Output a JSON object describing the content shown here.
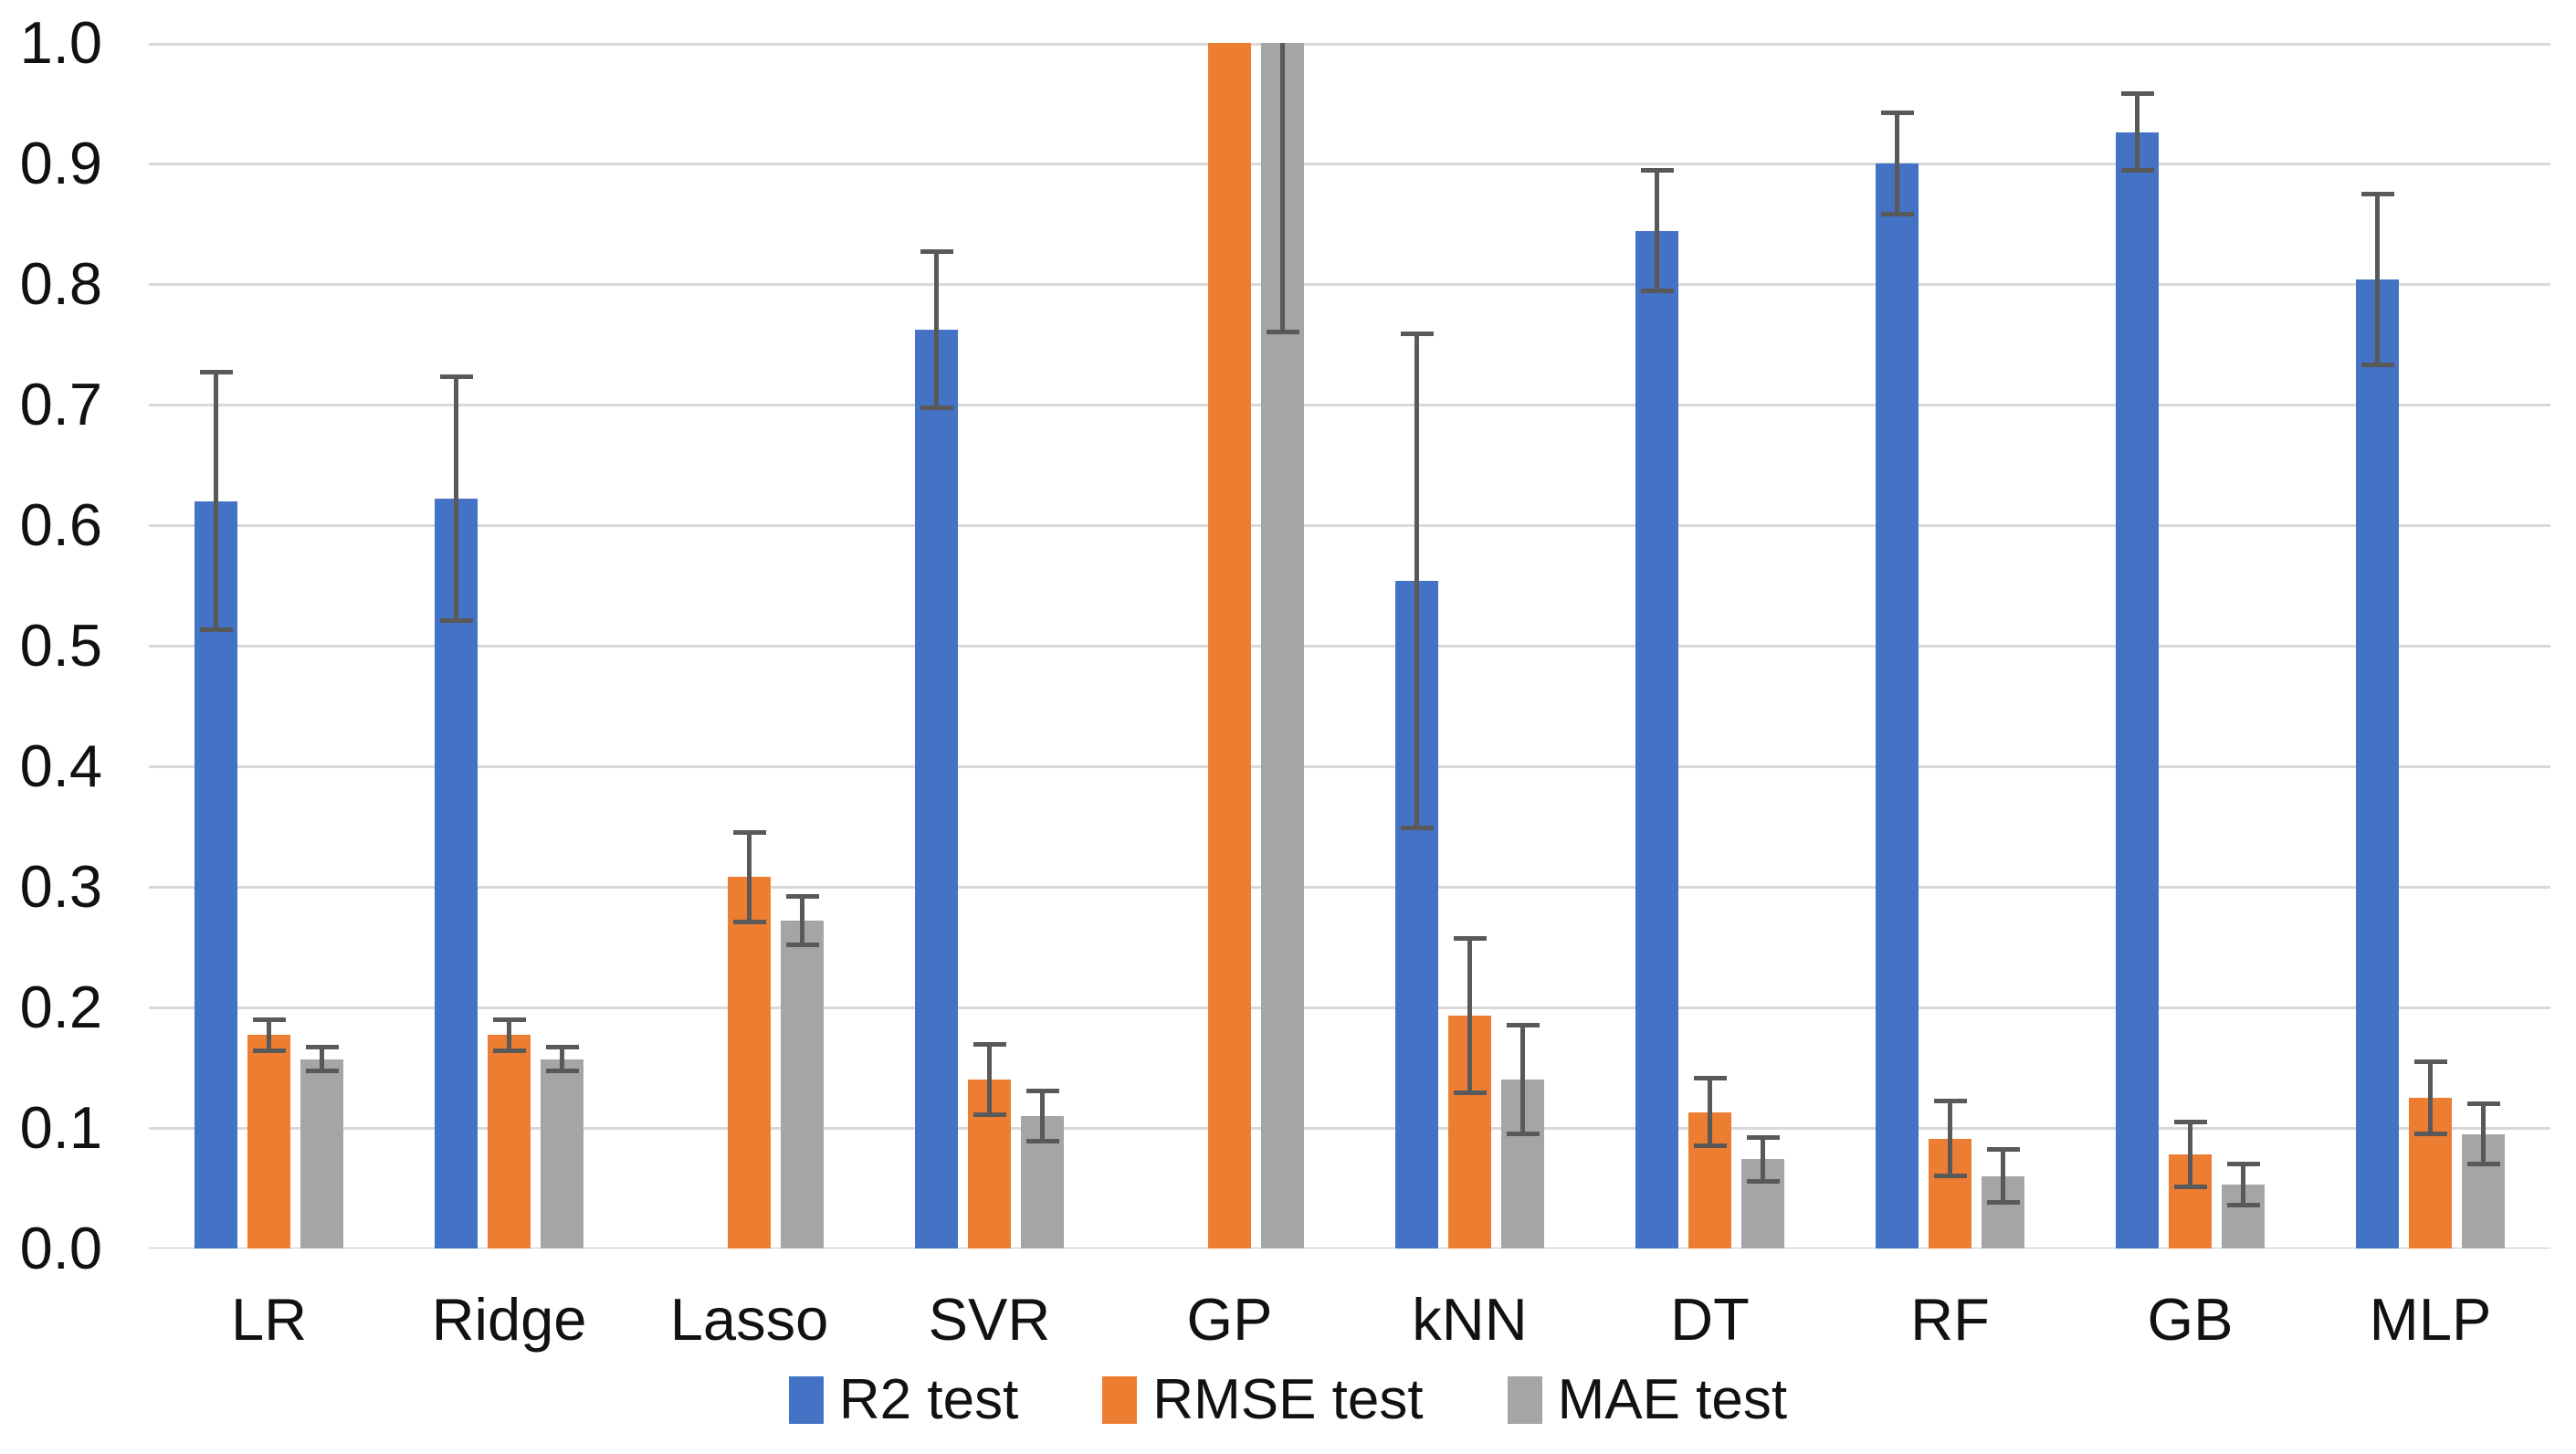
{
  "chart_data": {
    "type": "bar",
    "title": "",
    "xlabel": "",
    "ylabel": "",
    "ylim": [
      0.0,
      1.0
    ],
    "grid": true,
    "legend_position": "bottom",
    "y_tick_labels": [
      "1.0",
      "0.9",
      "0.8",
      "0.7",
      "0.6",
      "0.5",
      "0.4",
      "0.3",
      "0.2",
      "0.1",
      "0.0"
    ],
    "categories": [
      "LR",
      "Ridge",
      "Lasso",
      "SVR",
      "GP",
      "kNN",
      "DT",
      "RF",
      "GB",
      "MLP"
    ],
    "series": [
      {
        "name": "R2 test",
        "color": "#4472C4",
        "values": [
          0.62,
          0.622,
          null,
          0.762,
          null,
          0.554,
          0.844,
          0.9,
          0.926,
          0.804
        ],
        "errors": [
          0.107,
          0.101,
          null,
          0.065,
          null,
          0.205,
          0.05,
          0.042,
          0.032,
          0.071
        ],
        "clipped_above_axis": [
          false,
          false,
          false,
          false,
          false,
          false,
          false,
          false,
          false,
          false
        ]
      },
      {
        "name": "RMSE test",
        "color": "#ED7D31",
        "values": [
          0.177,
          0.177,
          0.308,
          0.14,
          1.02,
          0.193,
          0.113,
          0.091,
          0.078,
          0.125
        ],
        "errors": [
          0.013,
          0.013,
          0.037,
          0.029,
          null,
          0.064,
          0.028,
          0.031,
          0.027,
          0.03
        ],
        "clipped_above_axis": [
          false,
          false,
          false,
          false,
          true,
          false,
          false,
          false,
          false,
          false
        ]
      },
      {
        "name": "MAE test",
        "color": "#A5A5A5",
        "values": [
          0.157,
          0.157,
          0.272,
          0.11,
          1.02,
          0.14,
          0.074,
          0.06,
          0.053,
          0.095
        ],
        "errors": [
          0.01,
          0.01,
          0.02,
          0.021,
          0.26,
          0.045,
          0.018,
          0.022,
          0.017,
          0.025
        ],
        "clipped_above_axis": [
          false,
          false,
          false,
          false,
          true,
          false,
          false,
          false,
          false,
          false
        ]
      }
    ],
    "error_bar_color": "#595959",
    "gridline_color": "#D9D9D9"
  }
}
